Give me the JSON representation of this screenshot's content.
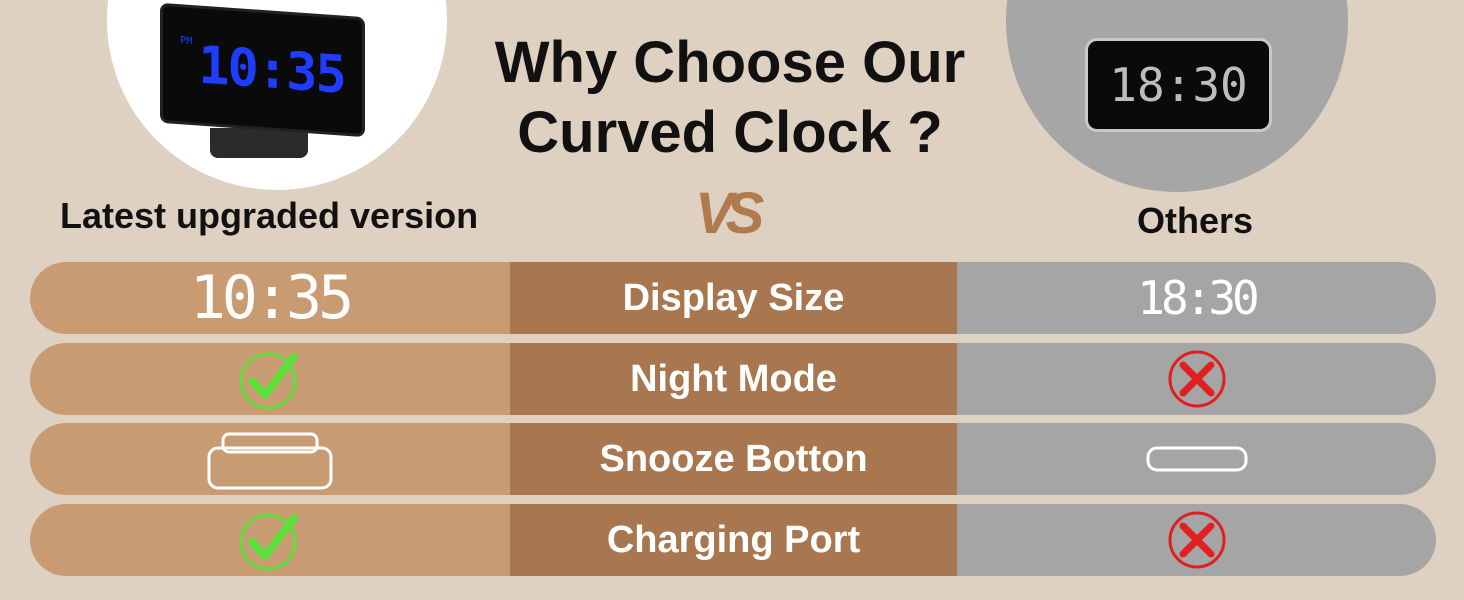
{
  "title": "Why Choose Our Curved Clock ?",
  "left_label": "Latest upgraded version",
  "right_label": "Others",
  "vs": "VS",
  "left_clock": {
    "time": "10:35",
    "period": "PM"
  },
  "right_clock": {
    "time": "18:30"
  },
  "rows": [
    {
      "feature": "Display Size",
      "ours": "10:35",
      "others": "18:30"
    },
    {
      "feature": "Night Mode",
      "ours": "check-icon",
      "others": "x-icon"
    },
    {
      "feature": "Snooze Botton",
      "ours": "large-snooze-button-icon",
      "others": "small-snooze-button-icon"
    },
    {
      "feature": "Charging Port",
      "ours": "check-icon",
      "others": "x-icon"
    }
  ],
  "colors": {
    "background": "#dfd1c1",
    "ours": "#c99b73",
    "feature": "#a8774f",
    "others": "#a5a5a5",
    "check": "#5ee03a",
    "cross": "#e02020",
    "led_blue": "#1f3cff"
  }
}
